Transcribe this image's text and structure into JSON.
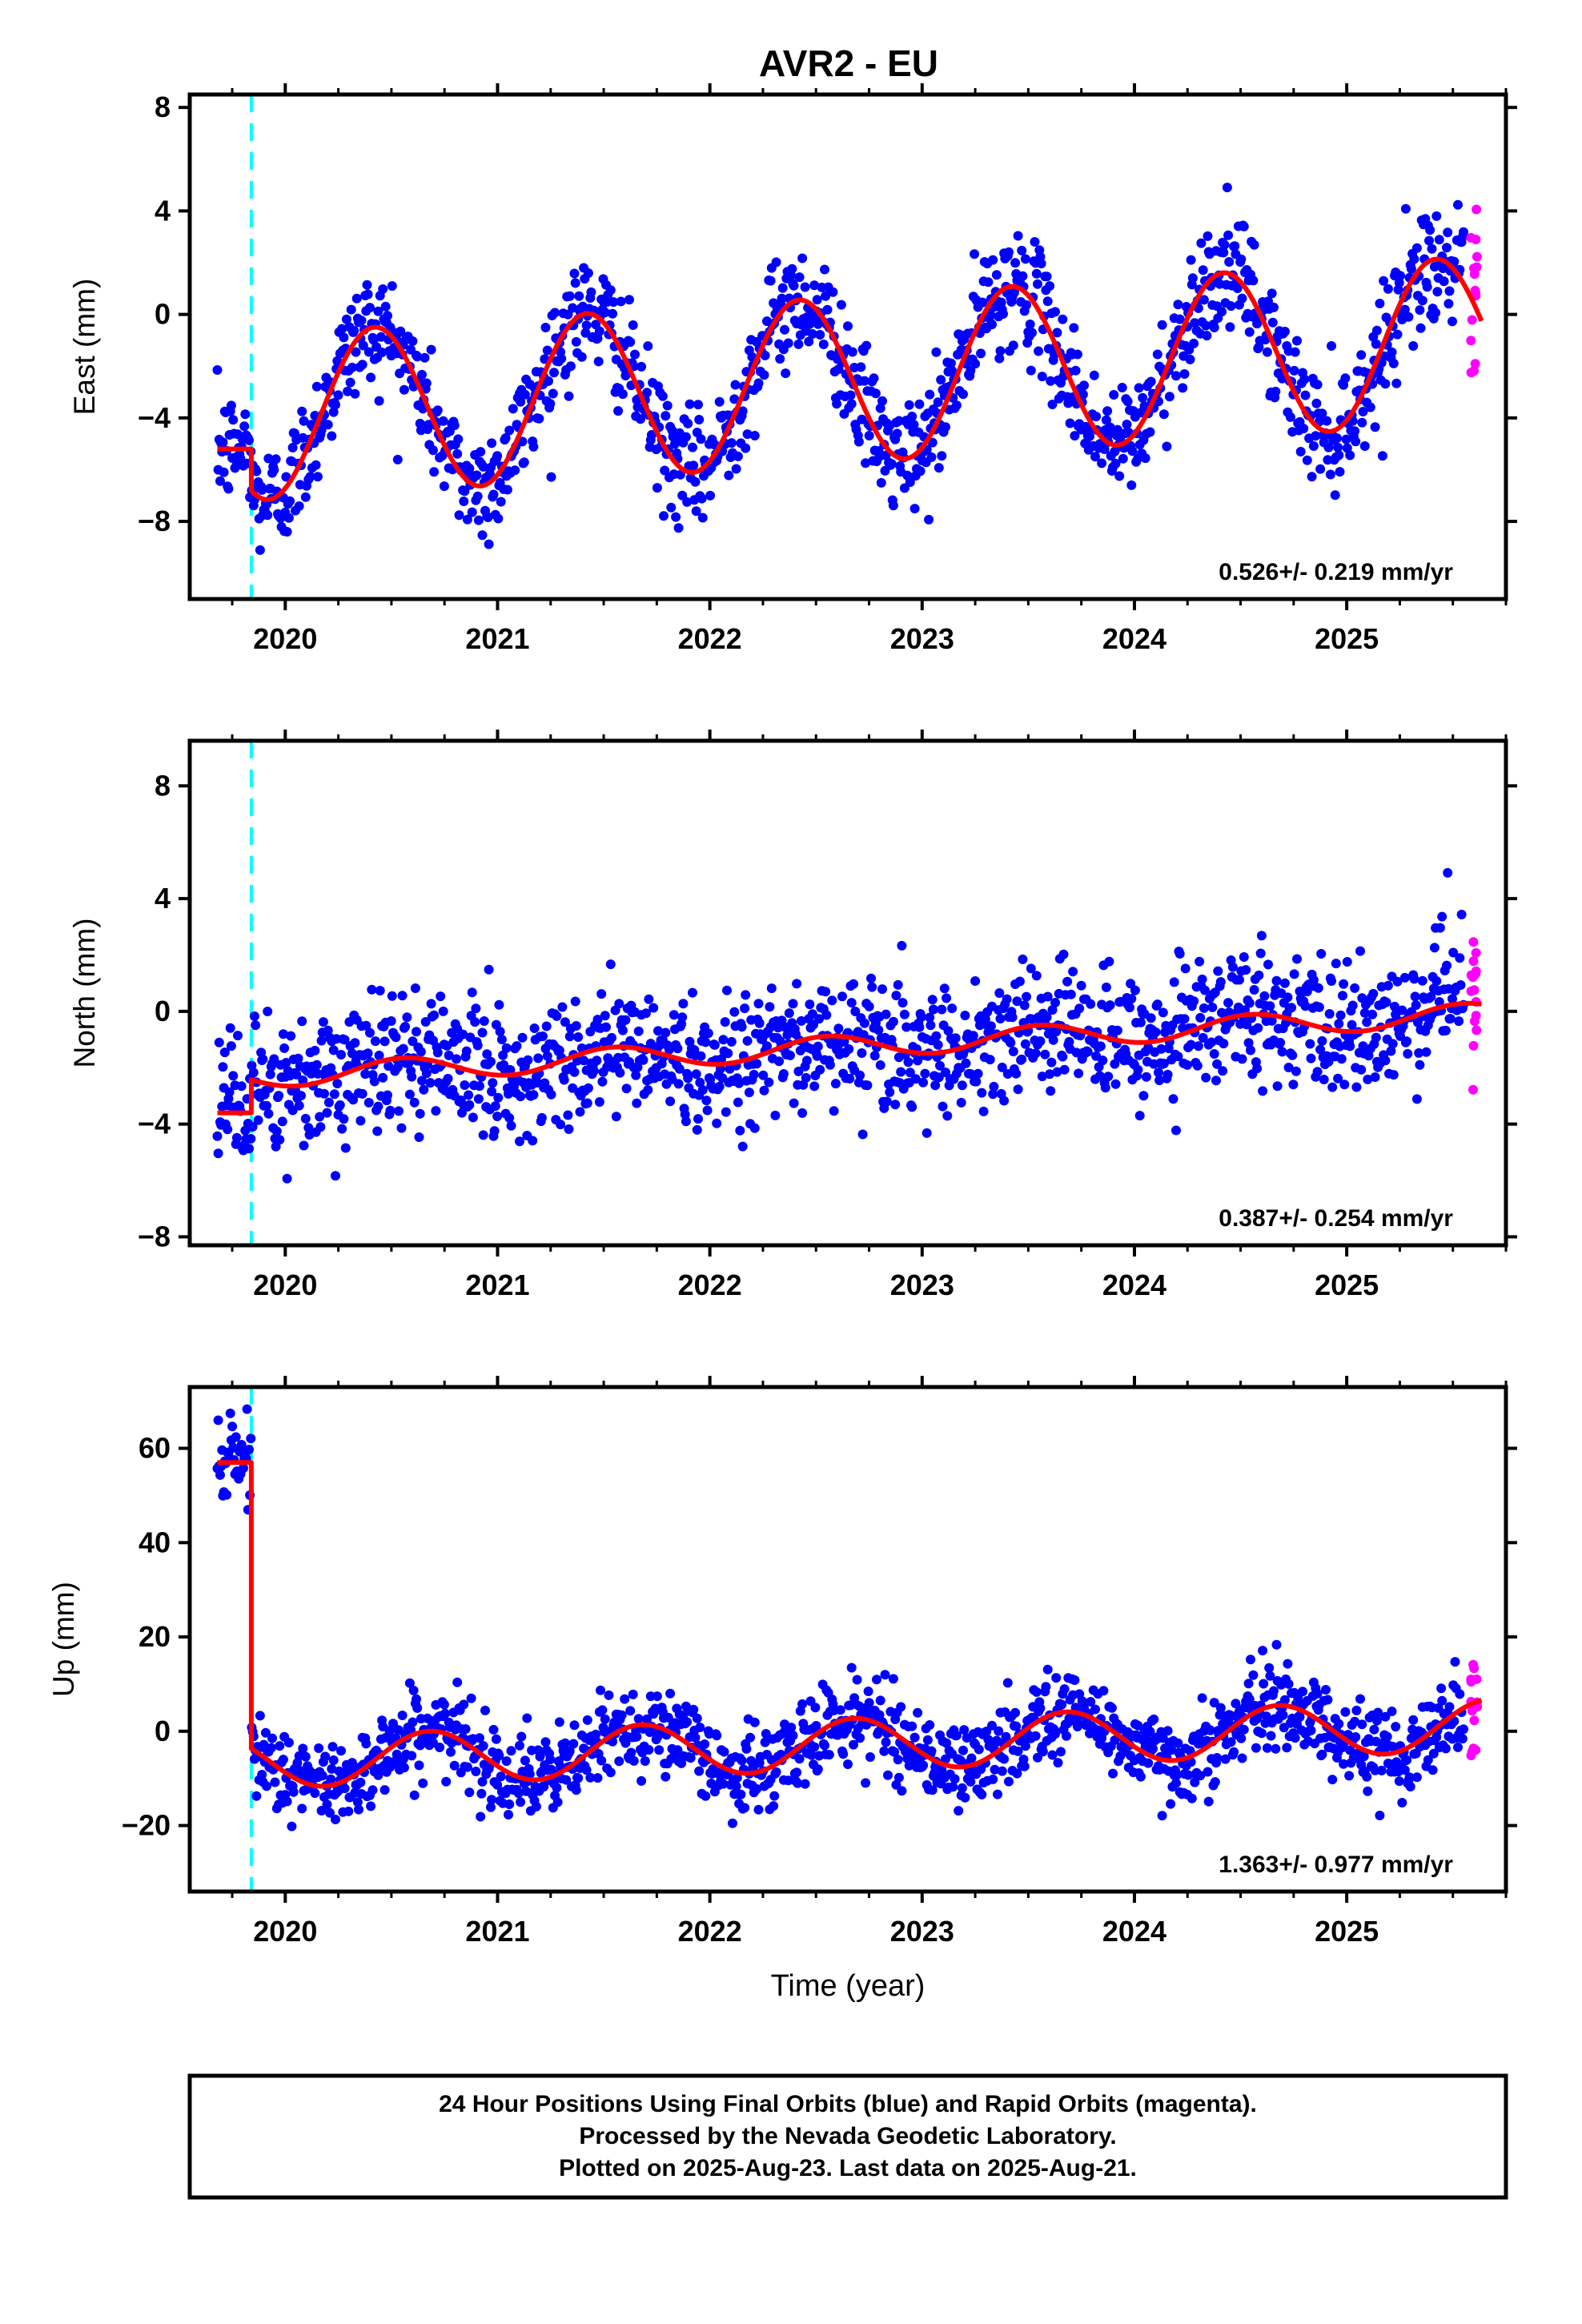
{
  "title": "AVR2 - EU",
  "footer": {
    "line1": "24 Hour Positions Using Final Orbits (blue) and Rapid Orbits (magenta).",
    "line2": "Processed by the Nevada Geodetic Laboratory.",
    "line3": "Plotted on 2025-Aug-23. Last data on 2025-Aug-21."
  },
  "colors": {
    "final": "#0000ff",
    "rapid": "#ff00ff",
    "model": "#ff0000",
    "event": "#00ffff",
    "frame": "#000000"
  },
  "chart_data": [
    {
      "type": "scatter",
      "component": "east",
      "ylabel": "East (mm)",
      "xlabel": "",
      "xlim": [
        2019.55,
        2025.75
      ],
      "ylim": [
        -11,
        8.5
      ],
      "yticks": [
        -8,
        -4,
        0,
        4,
        8
      ],
      "ytick_labels": [
        "−8",
        "−4",
        "0",
        "4",
        "8"
      ],
      "xticks": [
        2020,
        2021,
        2022,
        2023,
        2024,
        2025
      ],
      "xtick_labels": [
        "2020",
        "2021",
        "2022",
        "2023",
        "2024",
        "2025"
      ],
      "rate": "0.526+/- 0.219 mm/yr",
      "event_line_x": 2019.84,
      "data_range": [
        2019.68,
        2025.55
      ],
      "rapid_range": [
        2025.56,
        2025.64
      ],
      "model": {
        "offset_before": -5.2,
        "offset_after": -2.6,
        "amplitude": 3.2,
        "peak_phase": 0.42,
        "trend": 0.526,
        "jump_at": 2019.84,
        "ref_year": 2022.5,
        "base": 0.0
      },
      "scatter_sd": 1.1,
      "series": [
        {
          "name": "Final Orbits",
          "color": "#0000ff"
        },
        {
          "name": "Rapid Orbits",
          "color": "#ff00ff"
        },
        {
          "name": "Model",
          "color": "#ff0000"
        }
      ]
    },
    {
      "type": "scatter",
      "component": "north",
      "ylabel": "North (mm)",
      "xlabel": "",
      "xlim": [
        2019.55,
        2025.75
      ],
      "ylim": [
        -8.3,
        9.6
      ],
      "yticks": [
        -8,
        -4,
        0,
        4,
        8
      ],
      "ytick_labels": [
        "−8",
        "−4",
        "0",
        "4",
        "8"
      ],
      "xticks": [
        2020,
        2021,
        2022,
        2023,
        2024,
        2025
      ],
      "xtick_labels": [
        "2020",
        "2021",
        "2022",
        "2023",
        "2024",
        "2025"
      ],
      "rate": "0.387+/- 0.254 mm/yr",
      "event_line_x": 2019.84,
      "data_range": [
        2019.68,
        2025.55
      ],
      "rapid_range": [
        2025.56,
        2025.64
      ],
      "model": {
        "offset_before": -3.6,
        "offset_after": -1.3,
        "amplitude": 0.4,
        "peak_phase": 0.55,
        "trend": 0.387,
        "jump_at": 2019.84,
        "ref_year": 2022.5,
        "base": 0.0
      },
      "scatter_sd": 1.2,
      "series": [
        {
          "name": "Final Orbits",
          "color": "#0000ff"
        },
        {
          "name": "Rapid Orbits",
          "color": "#ff00ff"
        },
        {
          "name": "Model",
          "color": "#ff0000"
        }
      ]
    },
    {
      "type": "scatter",
      "component": "up",
      "ylabel": "Up (mm)",
      "xlabel": "Time (year)",
      "xlim": [
        2019.55,
        2025.75
      ],
      "ylim": [
        -34,
        73
      ],
      "yticks": [
        -20,
        0,
        20,
        40,
        60
      ],
      "ytick_labels": [
        "−20",
        "0",
        "20",
        "40",
        "60"
      ],
      "xticks": [
        2020,
        2021,
        2022,
        2023,
        2024,
        2025
      ],
      "xtick_labels": [
        "2020",
        "2021",
        "2022",
        "2023",
        "2024",
        "2025"
      ],
      "rate": "1.363+/- 0.977 mm/yr",
      "event_line_x": 2019.84,
      "data_range": [
        2019.68,
        2025.55
      ],
      "rapid_range": [
        2025.56,
        2025.64
      ],
      "model": {
        "offset_before": 57.0,
        "offset_after": -3.0,
        "amplitude": 5.5,
        "peak_phase": 0.68,
        "trend": 1.363,
        "jump_at": 2019.84,
        "ref_year": 2022.5,
        "base": 0.0
      },
      "scatter_sd": 4.5,
      "series": [
        {
          "name": "Final Orbits",
          "color": "#0000ff"
        },
        {
          "name": "Rapid Orbits",
          "color": "#ff00ff"
        },
        {
          "name": "Model",
          "color": "#ff0000"
        }
      ]
    }
  ]
}
